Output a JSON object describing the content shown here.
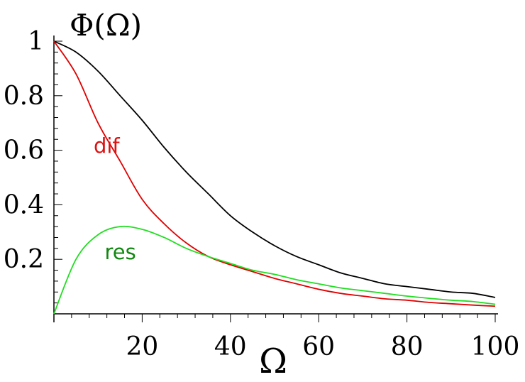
{
  "chart_data": {
    "type": "line",
    "title": "",
    "xlabel": "Ω",
    "ylabel": "Φ(Ω)",
    "xlim": [
      0,
      100
    ],
    "ylim": [
      0,
      1.0
    ],
    "x_ticks": [
      20,
      40,
      60,
      80,
      100
    ],
    "y_ticks": [
      0.2,
      0.4,
      0.6,
      0.8,
      1
    ],
    "x_tick_labels": [
      "20",
      "40",
      "60",
      "80",
      "100"
    ],
    "y_tick_labels": [
      "0.2",
      "0.4",
      "0.6",
      "0.8",
      "1"
    ],
    "grid": false,
    "legend": "none",
    "x": [
      0,
      5,
      10,
      15,
      20,
      25,
      30,
      35,
      40,
      45,
      50,
      55,
      60,
      65,
      70,
      75,
      80,
      85,
      90,
      95,
      100
    ],
    "series": [
      {
        "color": "#000000",
        "values": [
          1.0,
          0.96,
          0.89,
          0.8,
          0.71,
          0.61,
          0.52,
          0.44,
          0.36,
          0.3,
          0.25,
          0.21,
          0.18,
          0.15,
          0.13,
          0.11,
          0.1,
          0.09,
          0.08,
          0.075,
          0.06
        ]
      },
      {
        "name": "dif",
        "color": "#e00000",
        "values": [
          1.0,
          0.88,
          0.7,
          0.56,
          0.42,
          0.33,
          0.26,
          0.21,
          0.18,
          0.155,
          0.13,
          0.11,
          0.09,
          0.075,
          0.065,
          0.055,
          0.05,
          0.042,
          0.037,
          0.032,
          0.028
        ]
      },
      {
        "name": "res",
        "color": "#22dd22",
        "values": [
          0.0,
          0.2,
          0.29,
          0.32,
          0.31,
          0.28,
          0.24,
          0.21,
          0.185,
          0.16,
          0.145,
          0.125,
          0.11,
          0.095,
          0.085,
          0.075,
          0.065,
          0.057,
          0.05,
          0.045,
          0.035
        ]
      }
    ],
    "labels": [
      {
        "text": "dif",
        "color": "#dd1111",
        "x": 9,
        "y": 0.59
      },
      {
        "text": "res",
        "color": "#118811",
        "x": 11.5,
        "y": 0.2
      }
    ]
  }
}
